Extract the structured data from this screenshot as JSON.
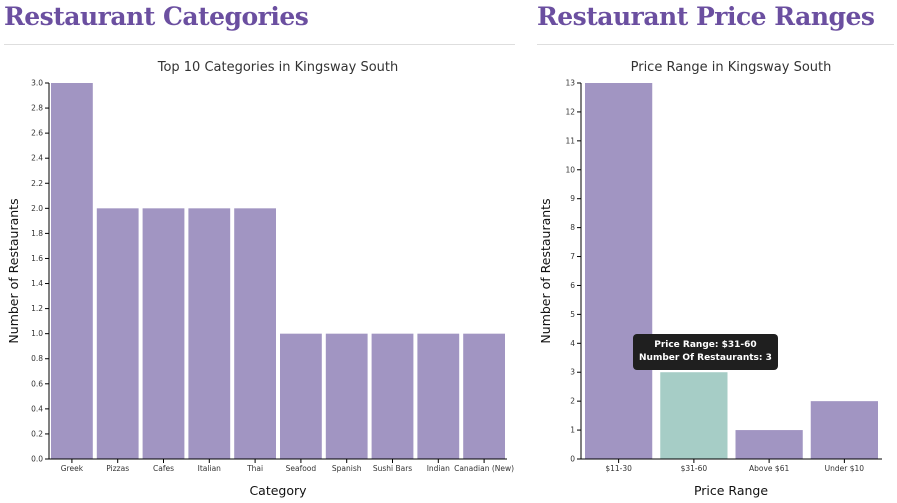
{
  "sections": {
    "left_title": "Restaurant Categories",
    "right_title": "Restaurant Price Ranges"
  },
  "colors": {
    "bar": "#a195c2",
    "highlight": "#a6cdc6",
    "heading": "#6b4fa0"
  },
  "tooltip": {
    "line1": "Price Range: $31-60",
    "line2": "Number Of Restaurants: 3"
  },
  "chart_data": [
    {
      "type": "bar",
      "title": "Top 10 Categories in Kingsway South",
      "xlabel": "Category",
      "ylabel": "Number of Restaurants",
      "categories": [
        "Greek",
        "Pizzas",
        "Cafes",
        "Italian",
        "Thai",
        "Seafood",
        "Spanish",
        "Sushi Bars",
        "Indian",
        "Canadian (New)"
      ],
      "values": [
        3,
        2,
        2,
        2,
        2,
        1,
        1,
        1,
        1,
        1
      ],
      "ylim": [
        0,
        3
      ],
      "yticks": [
        "0.0",
        "0.2",
        "0.4",
        "0.6",
        "0.8",
        "1.0",
        "1.2",
        "1.4",
        "1.6",
        "1.8",
        "2.0",
        "2.2",
        "2.4",
        "2.6",
        "2.8",
        "3.0"
      ]
    },
    {
      "type": "bar",
      "title": "Price Range in Kingsway South",
      "xlabel": "Price Range",
      "ylabel": "Number of Restaurants",
      "categories": [
        "$11-30",
        "$31-60",
        "Above $61",
        "Under $10"
      ],
      "values": [
        13,
        3,
        1,
        2
      ],
      "ylim": [
        0,
        13
      ],
      "yticks": [
        "0",
        "1",
        "2",
        "3",
        "4",
        "5",
        "6",
        "7",
        "8",
        "9",
        "10",
        "11",
        "12",
        "13"
      ],
      "highlighted": "$31-60"
    }
  ]
}
